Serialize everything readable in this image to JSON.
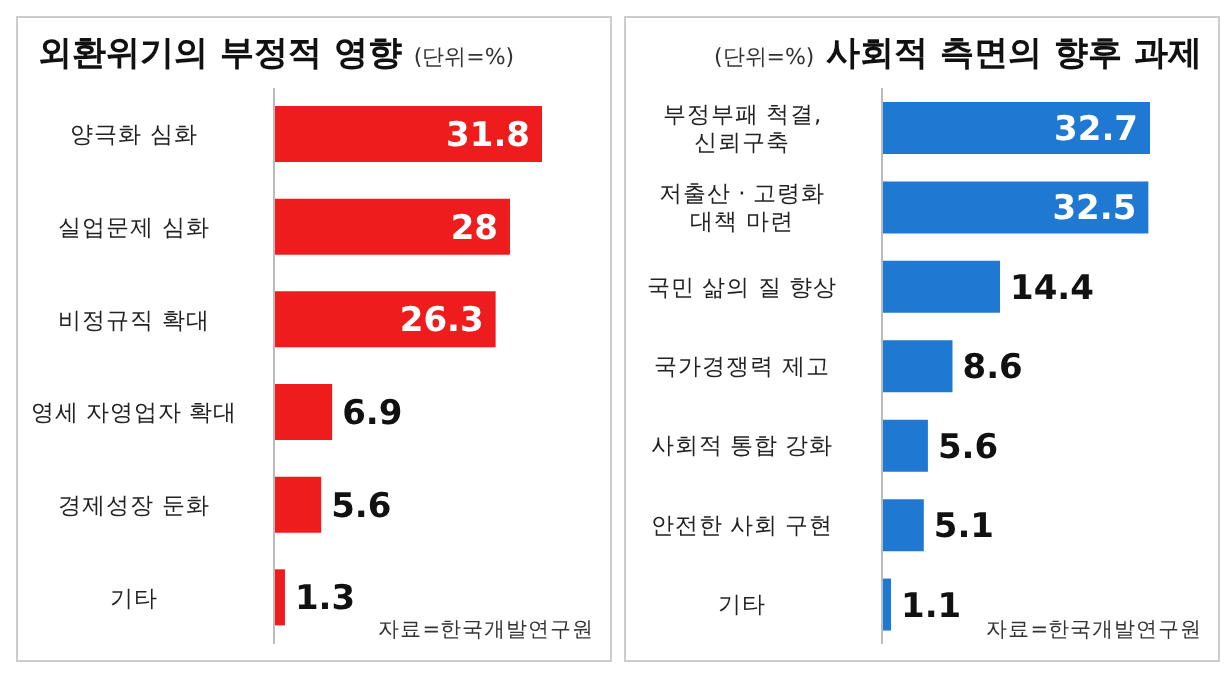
{
  "chart_data": [
    {
      "type": "bar",
      "orientation": "horizontal",
      "title": "외환위기의 부정적 영향",
      "subtitle": "(단위=%)",
      "categories": [
        "양극화 심화",
        "실업문제 심화",
        "비정규직 확대",
        "영세 자영업자 확대",
        "경제성장 둔화",
        "기타"
      ],
      "values": [
        31.8,
        28,
        26.3,
        6.9,
        5.6,
        1.3
      ],
      "color": "#ee1c1c",
      "data_labels": true,
      "annotations": [
        "자료=한국개발연구원"
      ]
    },
    {
      "type": "bar",
      "orientation": "horizontal",
      "title": "사회적 측면의 향후 과제",
      "subtitle": "(단위=%)",
      "categories": [
        "부정부패 척결,\n신뢰구축",
        "저출산 · 고령화\n대책 마련",
        "국민 삶의 질 향상",
        "국가경쟁력 제고",
        "사회적 통합 강화",
        "안전한 사회 구현",
        "기타"
      ],
      "values": [
        32.7,
        32.5,
        14.4,
        8.6,
        5.6,
        5.1,
        1.1
      ],
      "color": "#1f78d1",
      "data_labels": true,
      "annotations": [
        "자료=한국개발연구원"
      ]
    }
  ]
}
